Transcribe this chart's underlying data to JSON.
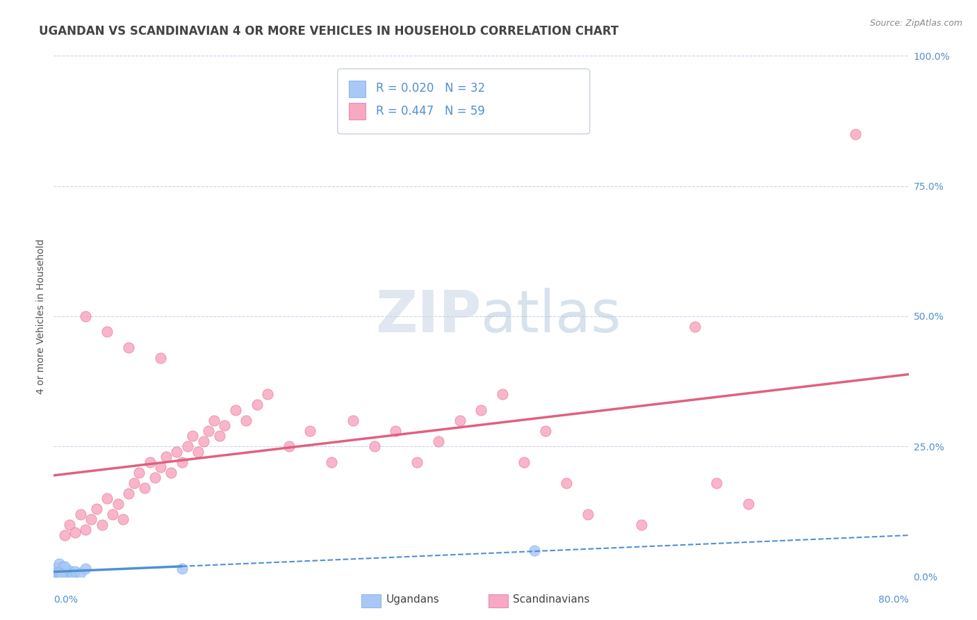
{
  "title": "UGANDAN VS SCANDINAVIAN 4 OR MORE VEHICLES IN HOUSEHOLD CORRELATION CHART",
  "source": "Source: ZipAtlas.com",
  "ylabel": "4 or more Vehicles in Household",
  "xlim": [
    0.0,
    80.0
  ],
  "ylim": [
    0.0,
    100.0
  ],
  "yticks": [
    0.0,
    25.0,
    50.0,
    75.0,
    100.0
  ],
  "ugandan_color": "#a8c8f8",
  "scandinavian_color": "#f8a8c0",
  "ugandan_line_color": "#5090d0",
  "scandinavian_line_color": "#e06080",
  "background_color": "#ffffff",
  "grid_color": "#c8d4e8",
  "title_color": "#444444",
  "label_color": "#5090d0",
  "ugandan_points": [
    [
      0.3,
      0.5
    ],
    [
      0.4,
      0.8
    ],
    [
      0.5,
      1.0
    ],
    [
      0.5,
      0.3
    ],
    [
      0.6,
      1.5
    ],
    [
      0.6,
      0.5
    ],
    [
      0.7,
      0.8
    ],
    [
      0.7,
      1.2
    ],
    [
      0.8,
      0.5
    ],
    [
      0.8,
      2.0
    ],
    [
      0.9,
      1.0
    ],
    [
      0.9,
      0.3
    ],
    [
      1.0,
      0.8
    ],
    [
      1.0,
      1.5
    ],
    [
      1.1,
      0.5
    ],
    [
      1.2,
      1.0
    ],
    [
      1.3,
      0.8
    ],
    [
      1.5,
      1.2
    ],
    [
      1.8,
      0.5
    ],
    [
      2.0,
      1.0
    ],
    [
      2.5,
      0.8
    ],
    [
      3.0,
      1.5
    ],
    [
      0.4,
      1.8
    ],
    [
      0.5,
      2.5
    ],
    [
      0.6,
      0.3
    ],
    [
      0.3,
      0.8
    ],
    [
      0.8,
      1.8
    ],
    [
      1.0,
      2.0
    ],
    [
      0.5,
      0.8
    ],
    [
      0.7,
      0.5
    ],
    [
      12.0,
      1.5
    ],
    [
      45.0,
      5.0
    ]
  ],
  "scandinavian_points": [
    [
      1.0,
      8.0
    ],
    [
      1.5,
      10.0
    ],
    [
      2.0,
      8.5
    ],
    [
      2.5,
      12.0
    ],
    [
      3.0,
      9.0
    ],
    [
      3.5,
      11.0
    ],
    [
      4.0,
      13.0
    ],
    [
      4.5,
      10.0
    ],
    [
      5.0,
      15.0
    ],
    [
      5.5,
      12.0
    ],
    [
      6.0,
      14.0
    ],
    [
      6.5,
      11.0
    ],
    [
      7.0,
      16.0
    ],
    [
      7.5,
      18.0
    ],
    [
      8.0,
      20.0
    ],
    [
      8.5,
      17.0
    ],
    [
      9.0,
      22.0
    ],
    [
      9.5,
      19.0
    ],
    [
      10.0,
      21.0
    ],
    [
      10.5,
      23.0
    ],
    [
      11.0,
      20.0
    ],
    [
      11.5,
      24.0
    ],
    [
      12.0,
      22.0
    ],
    [
      12.5,
      25.0
    ],
    [
      13.0,
      27.0
    ],
    [
      13.5,
      24.0
    ],
    [
      14.0,
      26.0
    ],
    [
      14.5,
      28.0
    ],
    [
      15.0,
      30.0
    ],
    [
      15.5,
      27.0
    ],
    [
      16.0,
      29.0
    ],
    [
      17.0,
      32.0
    ],
    [
      18.0,
      30.0
    ],
    [
      19.0,
      33.0
    ],
    [
      20.0,
      35.0
    ],
    [
      22.0,
      25.0
    ],
    [
      24.0,
      28.0
    ],
    [
      26.0,
      22.0
    ],
    [
      28.0,
      30.0
    ],
    [
      30.0,
      25.0
    ],
    [
      32.0,
      28.0
    ],
    [
      34.0,
      22.0
    ],
    [
      36.0,
      26.0
    ],
    [
      38.0,
      30.0
    ],
    [
      40.0,
      32.0
    ],
    [
      42.0,
      35.0
    ],
    [
      44.0,
      22.0
    ],
    [
      46.0,
      28.0
    ],
    [
      48.0,
      18.0
    ],
    [
      50.0,
      12.0
    ],
    [
      55.0,
      10.0
    ],
    [
      60.0,
      48.0
    ],
    [
      62.0,
      18.0
    ],
    [
      65.0,
      14.0
    ],
    [
      3.0,
      50.0
    ],
    [
      5.0,
      47.0
    ],
    [
      7.0,
      44.0
    ],
    [
      10.0,
      42.0
    ],
    [
      75.0,
      85.0
    ]
  ],
  "title_fontsize": 12,
  "axis_fontsize": 10,
  "legend_fontsize": 12
}
